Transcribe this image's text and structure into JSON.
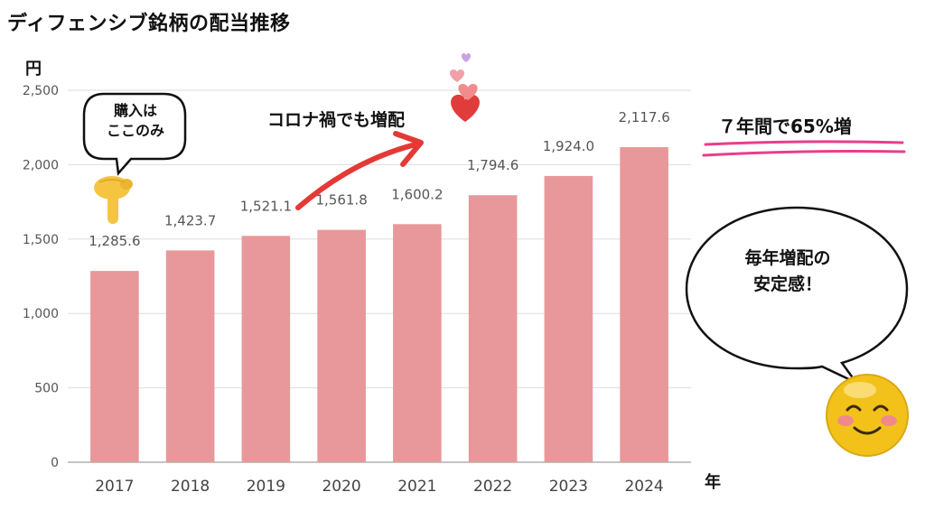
{
  "title": "ディフェンシブ銘柄の配当推移",
  "y_unit": "円",
  "x_unit": "年",
  "annotations": {
    "purchase_note_line1": "購入は",
    "purchase_note_line2": "ここのみ",
    "corona_note": "コロナ禍でも増配",
    "growth_note": "７年間で65%増",
    "stable_note_line1": "毎年増配の",
    "stable_note_line2": "安定感！"
  },
  "colors": {
    "bar": "#e8989a",
    "arrow": "#e53935",
    "underline": "#e83e8c",
    "grid": "#dddddd"
  },
  "icons": [
    "pointing-down-hand-icon",
    "hearts-icon",
    "smiling-face-icon",
    "speech-bubble-icon"
  ],
  "chart_data": {
    "type": "bar",
    "categories": [
      "2017",
      "2018",
      "2019",
      "2020",
      "2021",
      "2022",
      "2023",
      "2024"
    ],
    "values": [
      1285.6,
      1423.7,
      1521.1,
      1561.8,
      1600.2,
      1794.6,
      1924.0,
      2117.6
    ],
    "value_labels": [
      "1,285.6",
      "1,423.7",
      "1,521.1",
      "1,561.8",
      "1,600.2",
      "1,794.6",
      "1,924.0",
      "2,117.6"
    ],
    "y_ticks": [
      0,
      500,
      1000,
      1500,
      2000,
      2500
    ],
    "y_tick_labels": [
      "0",
      "500",
      "1,000",
      "1,500",
      "2,000",
      "2,500"
    ],
    "ylim": [
      0,
      2500
    ],
    "grid": true,
    "title": "ディフェンシブ銘柄の配当推移",
    "xlabel": "年",
    "ylabel": "円"
  }
}
